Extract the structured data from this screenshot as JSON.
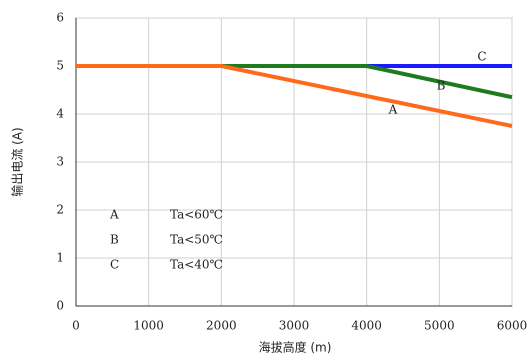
{
  "chart_data": {
    "type": "line",
    "x_label": "海拔高度 (m)",
    "y_label": "输出电流 (A)",
    "xlim": [
      0,
      6000
    ],
    "xticks": [
      0,
      1000,
      2000,
      3000,
      4000,
      5000,
      6000
    ],
    "ylim": [
      0,
      6
    ],
    "yticks": [
      0,
      1,
      2,
      3,
      4,
      5,
      6
    ],
    "grid": true,
    "series": [
      {
        "name": "C",
        "condition": "Ta<40℃",
        "color": "#1a1aff",
        "x": [
          4000,
          6000
        ],
        "values": [
          5,
          5
        ]
      },
      {
        "name": "B",
        "condition": "Ta<50℃",
        "color": "#1e7b1e",
        "x": [
          2000,
          4000,
          6000
        ],
        "values": [
          5,
          5,
          4.35
        ]
      },
      {
        "name": "A",
        "condition": "Ta<60℃",
        "color": "#ff6a1a",
        "x": [
          0,
          2000,
          6000
        ],
        "values": [
          5,
          5,
          3.75
        ]
      }
    ]
  }
}
